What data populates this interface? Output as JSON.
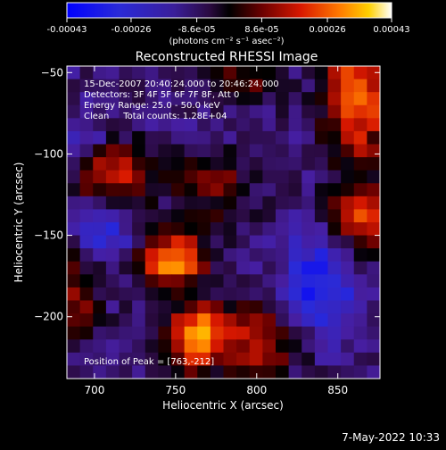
{
  "chart_data": {
    "type": "heatmap",
    "title": "Reconstructed RHESSI Image",
    "xlabel": "Heliocentric X (arcsec)",
    "ylabel": "Heliocentric Y (arcsec)",
    "xlim": [
      683,
      876
    ],
    "ylim": [
      -238,
      -46
    ],
    "x_ticks": [
      700,
      750,
      800,
      850
    ],
    "y_ticks": [
      -50,
      -100,
      -150,
      -200
    ],
    "colorbar": {
      "min": -0.00043,
      "max": 0.00043,
      "tick_values": [
        -0.00043,
        -0.00026,
        -8.6e-05,
        8.6e-05,
        0.00026,
        0.00043
      ],
      "tick_labels": [
        "-0.00043",
        "-0.00026",
        "-8.6e-05",
        "8.6e-05",
        "0.00026",
        "0.00043"
      ],
      "unit_label": "(photons cm⁻² s⁻¹ asec⁻²)"
    },
    "annotations": [
      "15-Dec-2007 20:40:24.000 to 20:46:24.000",
      "Detectors: 3F 4F 5F 6F 7F 8F, Att 0",
      "Energy Range: 25.0 - 50.0 keV",
      "Clean     Total counts: 1.28E+04"
    ],
    "peak_label": "Position of Peak = [763,-212]",
    "peak": [
      763,
      -212
    ],
    "grid": {
      "cols": 24,
      "rows": 24,
      "blobs": [
        {
          "x": 748,
          "y": -165,
          "amp": 0.00043,
          "sx": 14,
          "sy": 12
        },
        {
          "x": 763,
          "y": -212,
          "amp": 0.00043,
          "sx": 12,
          "sy": 14
        },
        {
          "x": 712,
          "y": -112,
          "amp": 0.0003,
          "sx": 18,
          "sy": 12
        },
        {
          "x": 862,
          "y": -65,
          "amp": 0.00038,
          "sx": 14,
          "sy": 28
        },
        {
          "x": 865,
          "y": -140,
          "amp": 0.0003,
          "sx": 14,
          "sy": 16
        },
        {
          "x": 800,
          "y": -215,
          "amp": 0.00026,
          "sx": 18,
          "sy": 16
        },
        {
          "x": 775,
          "y": -120,
          "amp": 0.00018,
          "sx": 16,
          "sy": 14
        },
        {
          "x": 690,
          "y": -185,
          "amp": 0.0002,
          "sx": 10,
          "sy": 20
        },
        {
          "x": 790,
          "y": -55,
          "amp": 0.00016,
          "sx": 16,
          "sy": 10
        },
        {
          "x": 840,
          "y": -180,
          "amp": -0.00026,
          "sx": 16,
          "sy": 22
        },
        {
          "x": 705,
          "y": -150,
          "amp": -0.0002,
          "sx": 12,
          "sy": 12
        },
        {
          "x": 690,
          "y": -95,
          "amp": -0.00016,
          "sx": 10,
          "sy": 12
        }
      ]
    }
  },
  "footer": {
    "timestamp": "7-May-2022 10:33"
  }
}
